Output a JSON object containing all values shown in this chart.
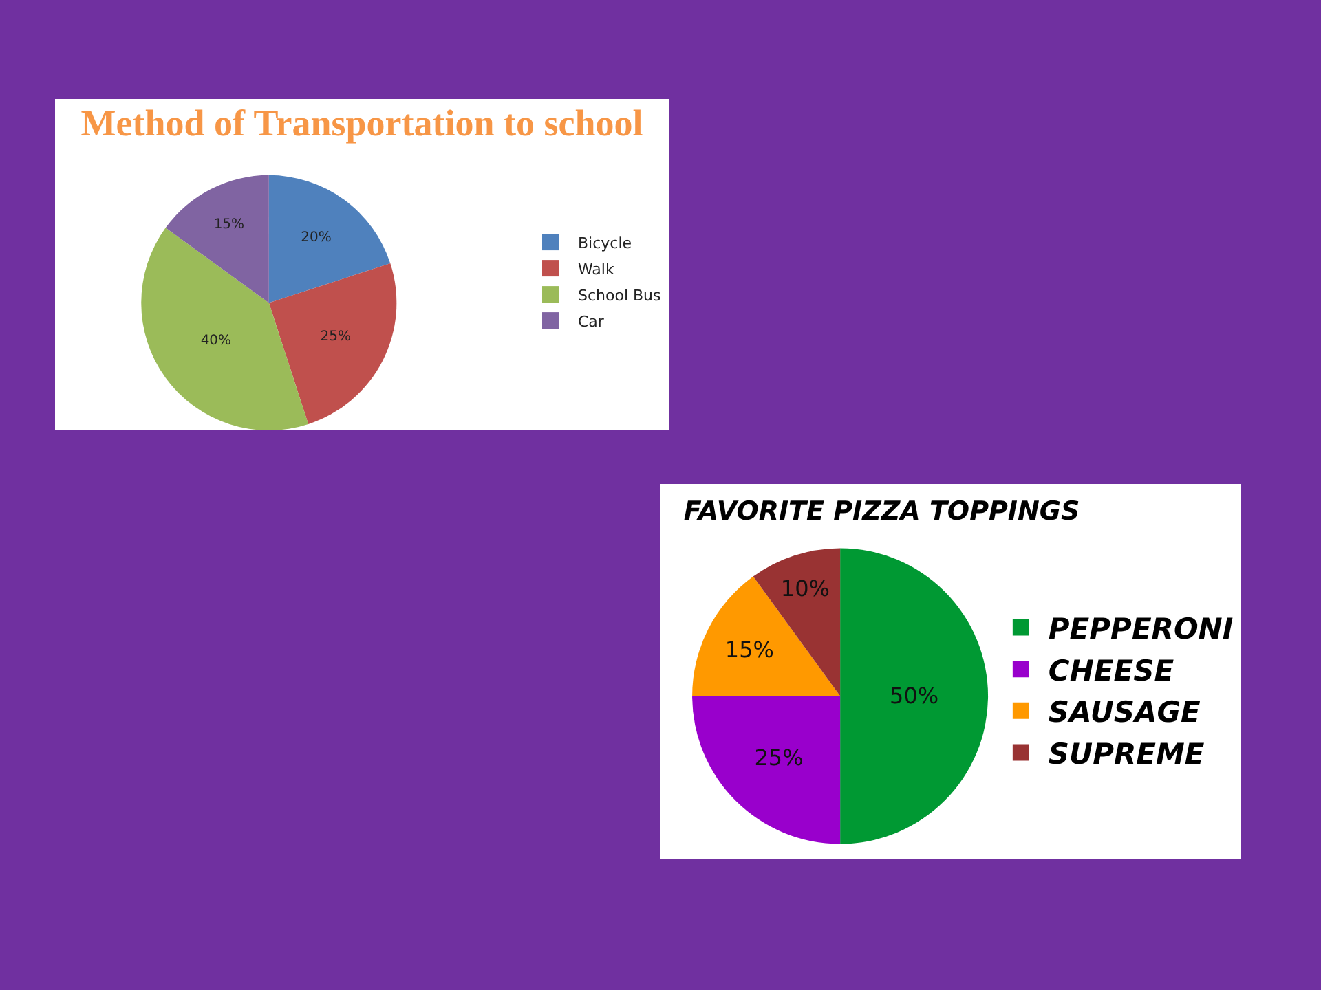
{
  "chart_data": [
    {
      "type": "pie",
      "title": "Method of Transportation to school",
      "categories": [
        "Bicycle",
        "Walk",
        "School Bus",
        "Car"
      ],
      "values": [
        20,
        25,
        40,
        15
      ],
      "colors": [
        "#4f81bd",
        "#c0504d",
        "#9bbb59",
        "#8064a2"
      ],
      "value_labels": [
        "20%",
        "25%",
        "40%",
        "15%"
      ],
      "legend": "right"
    },
    {
      "type": "pie",
      "title": "FAVORITE PIZZA TOPPINGS",
      "categories": [
        "PEPPERONI",
        "CHEESE",
        "SAUSAGE",
        "SUPREME"
      ],
      "values": [
        50,
        25,
        15,
        10
      ],
      "colors": [
        "#009933",
        "#9900cc",
        "#ff9900",
        "#993333"
      ],
      "value_labels": [
        "50%",
        "25%",
        "15%",
        "10%"
      ],
      "legend": "right"
    }
  ]
}
